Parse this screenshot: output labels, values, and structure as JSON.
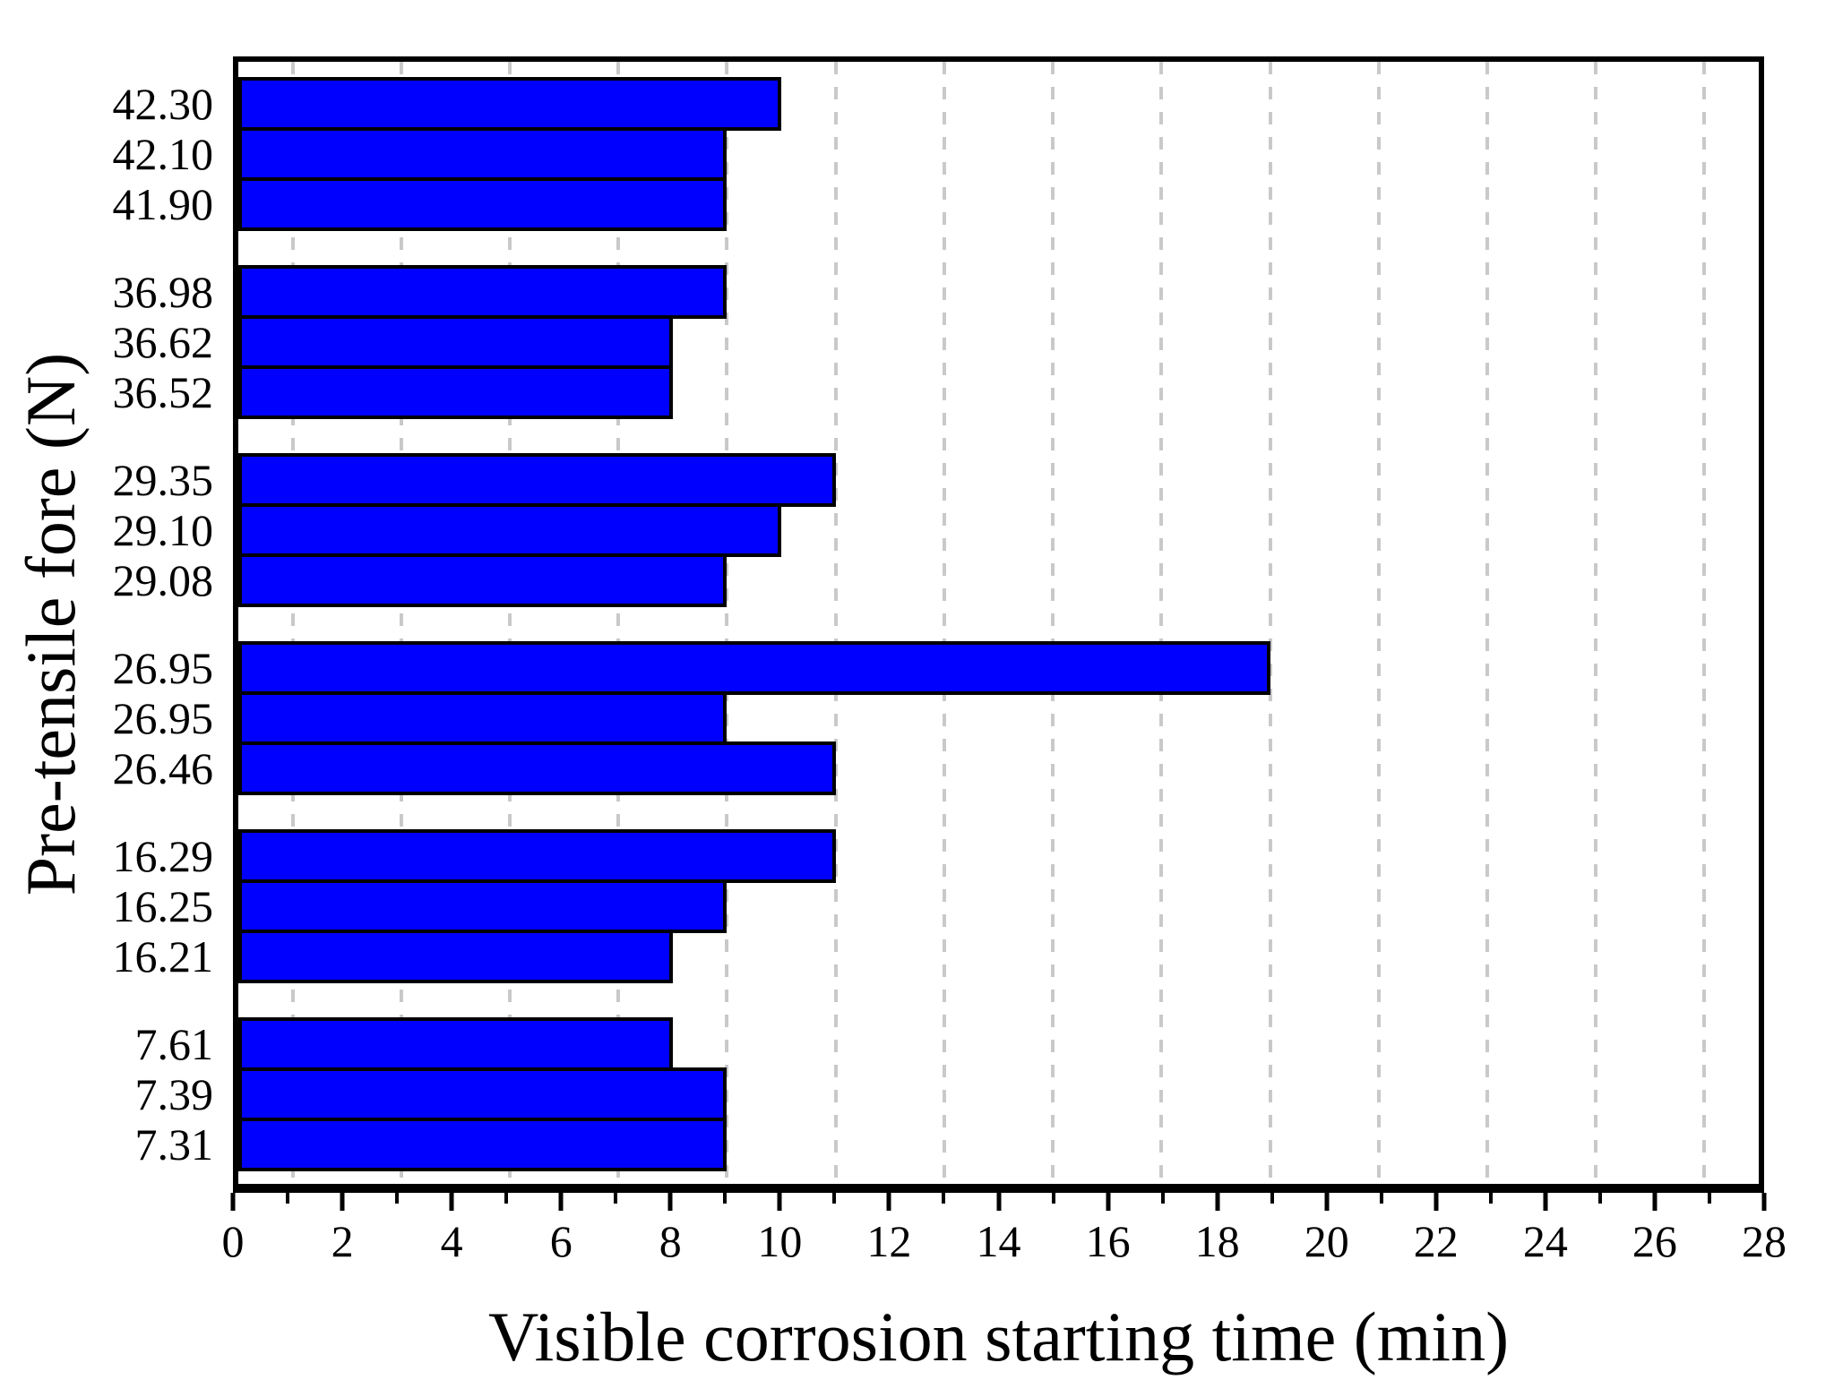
{
  "chart_data": {
    "type": "bar",
    "orientation": "horizontal",
    "title": "",
    "xlabel": "Visible corrosion starting time (min)",
    "ylabel": "Pre-tensile fore (N)",
    "xlim": [
      0,
      28
    ],
    "x_major_ticks": [
      0,
      2,
      4,
      6,
      8,
      10,
      12,
      14,
      16,
      18,
      20,
      22,
      24,
      26,
      28
    ],
    "x_minor_ticks": [
      1,
      3,
      5,
      7,
      9,
      11,
      13,
      15,
      17,
      19,
      21,
      23,
      25,
      27
    ],
    "grid": "vertical dashed gridlines at odd minute values",
    "legend": "none",
    "bar_color": "#0000FF",
    "bar_border_color": "#000000",
    "gridline_color": "#C9C9C9",
    "frame_color": "#000000",
    "background_color": "#FFFFFF",
    "categories": [
      "42.30",
      "42.10",
      "41.90",
      "36.98",
      "36.62",
      "36.52",
      "29.35",
      "29.10",
      "29.08",
      "26.95",
      "26.95",
      "26.46",
      "16.29",
      "16.25",
      "16.21",
      "7.61",
      "7.39",
      "7.31"
    ],
    "values": [
      10,
      9,
      9,
      9,
      8,
      8,
      11,
      10,
      9,
      19,
      9,
      11,
      11,
      9,
      8,
      8,
      9,
      9
    ],
    "groups": [
      {
        "bars": [
          {
            "label": "42.30",
            "value": 10
          },
          {
            "label": "42.10",
            "value": 9
          },
          {
            "label": "41.90",
            "value": 9
          }
        ]
      },
      {
        "bars": [
          {
            "label": "36.98",
            "value": 9
          },
          {
            "label": "36.62",
            "value": 8
          },
          {
            "label": "36.52",
            "value": 8
          }
        ]
      },
      {
        "bars": [
          {
            "label": "29.35",
            "value": 11
          },
          {
            "label": "29.10",
            "value": 10
          },
          {
            "label": "29.08",
            "value": 9
          }
        ]
      },
      {
        "bars": [
          {
            "label": "26.95",
            "value": 19
          },
          {
            "label": "26.95",
            "value": 9
          },
          {
            "label": "26.46",
            "value": 11
          }
        ]
      },
      {
        "bars": [
          {
            "label": "16.29",
            "value": 11
          },
          {
            "label": "16.25",
            "value": 9
          },
          {
            "label": "16.21",
            "value": 8
          }
        ]
      },
      {
        "bars": [
          {
            "label": "7.61",
            "value": 8
          },
          {
            "label": "7.39",
            "value": 9
          },
          {
            "label": "7.31",
            "value": 9
          }
        ]
      }
    ]
  }
}
